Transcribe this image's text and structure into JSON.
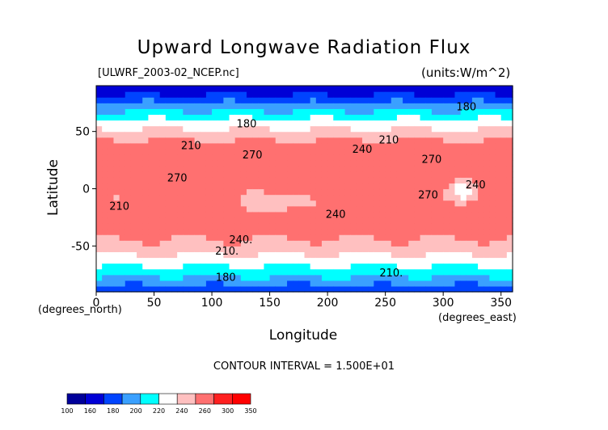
{
  "chart_data": {
    "type": "heatmap",
    "title": "Upward Longwave Radiation Flux",
    "source_label": "[ULWRF_2003-02_NCEP.nc]",
    "units_label": "(units:W/m^2)",
    "xlabel": "Longitude",
    "ylabel": "Latitude",
    "x_unit_label": "(degrees_east)",
    "y_unit_label": "(degrees_north)",
    "xlim": [
      0,
      360
    ],
    "ylim": [
      -90,
      90
    ],
    "x_ticks": [
      "0",
      "50",
      "100",
      "150",
      "200",
      "250",
      "300",
      "350"
    ],
    "y_ticks": [
      "-50",
      "0",
      "50"
    ],
    "contour_interval_label": "CONTOUR INTERVAL = 1.500E+01",
    "contour_labels": [
      {
        "text": "180",
        "lon": 130,
        "lat": 56
      },
      {
        "text": "210",
        "lon": 82,
        "lat": 37
      },
      {
        "text": "240",
        "lon": 230,
        "lat": 34
      },
      {
        "text": "210",
        "lon": 253,
        "lat": 42
      },
      {
        "text": "270",
        "lon": 135,
        "lat": 29
      },
      {
        "text": "270",
        "lon": 70,
        "lat": 9
      },
      {
        "text": "270",
        "lon": 290,
        "lat": 25
      },
      {
        "text": "240",
        "lon": 328,
        "lat": 3
      },
      {
        "text": "270",
        "lon": 287,
        "lat": -6
      },
      {
        "text": "240",
        "lon": 207,
        "lat": -23
      },
      {
        "text": "240.",
        "lon": 125,
        "lat": -45
      },
      {
        "text": "210.",
        "lon": 113,
        "lat": -55
      },
      {
        "text": "180",
        "lon": 112,
        "lat": -78
      },
      {
        "text": "210.",
        "lon": 255,
        "lat": -74
      },
      {
        "text": "180",
        "lon": 320,
        "lat": 71
      },
      {
        "text": "210",
        "lon": 20,
        "lat": -16
      }
    ],
    "colorbar": {
      "levels": [
        "100",
        "160",
        "180",
        "200",
        "220",
        "240",
        "260",
        "300",
        "350"
      ],
      "colors": [
        "#00009a",
        "#0000d6",
        "#0044ff",
        "#3aa0ff",
        "#00ffff",
        "#ffffff",
        "#ffc0c0",
        "#ff7070",
        "#ff2020",
        "#ff0000"
      ]
    }
  }
}
